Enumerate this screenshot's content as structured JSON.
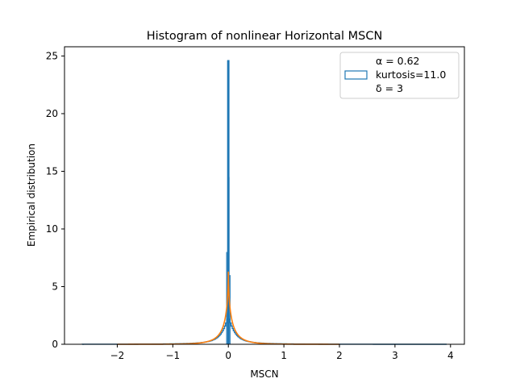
{
  "chart_data": {
    "type": "line",
    "title": "Histogram of nonlinear Horizontal MSCN",
    "xlabel": "MSCN",
    "ylabel": "Empirical distribution",
    "xlim": [
      -2.95,
      4.25
    ],
    "ylim": [
      0,
      25.8
    ],
    "xticks": [
      -2,
      -1,
      0,
      1,
      2,
      3,
      4
    ],
    "xtick_labels": [
      "−2",
      "−1",
      "0",
      "1",
      "2",
      "3",
      "4"
    ],
    "yticks": [
      0,
      5,
      10,
      15,
      20,
      25
    ],
    "ytick_labels": [
      "0",
      "5",
      "10",
      "15",
      "20",
      "25"
    ],
    "grid": false,
    "legend": {
      "placement": "top-right",
      "entries": [
        "α = 0.62",
        "kurtosis=11.0",
        "δ = 3"
      ]
    },
    "series": [
      {
        "style": "step-histogram",
        "color": "#1f77b4",
        "x_range": [
          -2.63,
          3.93
        ],
        "peak": {
          "x": 0.0,
          "y": 24.6
        }
      },
      {
        "style": "fitted-density",
        "color": "#ff7f0e",
        "x_range": [
          -2.0,
          2.0
        ],
        "peak": {
          "x": 0.0,
          "y": 6.3
        }
      }
    ]
  }
}
